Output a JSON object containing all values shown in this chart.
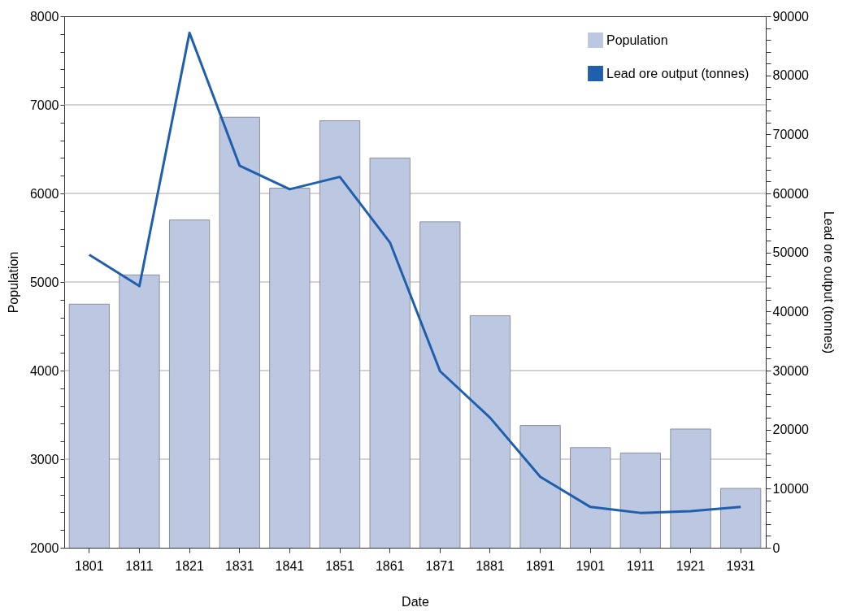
{
  "chart_data": {
    "type": "bar",
    "xlabel": "Date",
    "ylabel": "Population",
    "y2label": "Lead ore output (tonnes)",
    "categories": [
      "1801",
      "1811",
      "1821",
      "1831",
      "1841",
      "1851",
      "1861",
      "1871",
      "1881",
      "1891",
      "1901",
      "1911",
      "1921",
      "1931"
    ],
    "series": [
      {
        "name": "Population",
        "type": "bar",
        "color": "#bcc8e1",
        "values": [
          4750,
          5080,
          5700,
          6860,
          6060,
          6820,
          6400,
          5680,
          4620,
          3380,
          3130,
          3070,
          3340,
          2670
        ]
      },
      {
        "name": "Lead ore output (tonnes)",
        "type": "line",
        "axis": "y2",
        "color": "#1f5fae",
        "values": [
          49600,
          44300,
          87200,
          64700,
          60700,
          62800,
          51700,
          29900,
          22000,
          12000,
          6900,
          5900,
          6200,
          6900
        ]
      }
    ],
    "ylim": [
      2000,
      8000
    ],
    "yticks": [
      2000,
      {
        "value": 2200,
        "label": null
      },
      {
        "value": 2400,
        "label": null
      },
      {
        "value": 2600,
        "label": null
      },
      {
        "value": 2800,
        "label": null
      },
      3000,
      {
        "value": 3200,
        "label": null
      },
      {
        "value": 3400,
        "label": null
      },
      {
        "value": 3600,
        "label": null
      },
      {
        "value": 3800,
        "label": null
      },
      4000,
      {
        "value": 4200,
        "label": null
      },
      {
        "value": 4400,
        "label": null
      },
      {
        "value": 4600,
        "label": null
      },
      {
        "value": 4800,
        "label": null
      },
      5000,
      {
        "value": 5200,
        "label": null
      },
      {
        "value": 5400,
        "label": null
      },
      {
        "value": 5600,
        "label": null
      },
      {
        "value": 5800,
        "label": null
      },
      6000,
      {
        "value": 6200,
        "label": null
      },
      {
        "value": 6400,
        "label": null
      },
      {
        "value": 6600,
        "label": null
      },
      {
        "value": 6800,
        "label": null
      },
      7000,
      {
        "value": 7200,
        "label": null
      },
      {
        "value": 7400,
        "label": null
      },
      {
        "value": 7600,
        "label": null
      },
      {
        "value": 7800,
        "label": null
      },
      8000
    ],
    "y2lim": [
      0,
      90000
    ],
    "y2ticks": [
      0,
      {
        "value": 2000,
        "label": null
      },
      {
        "value": 4000,
        "label": null
      },
      {
        "value": 6000,
        "label": null
      },
      {
        "value": 8000,
        "label": null
      },
      10000,
      {
        "value": 12000,
        "label": null
      },
      {
        "value": 14000,
        "label": null
      },
      {
        "value": 16000,
        "label": null
      },
      {
        "value": 18000,
        "label": null
      },
      20000,
      {
        "value": 22000,
        "label": null
      },
      {
        "value": 24000,
        "label": null
      },
      {
        "value": 26000,
        "label": null
      },
      {
        "value": 28000,
        "label": null
      },
      30000,
      {
        "value": 32000,
        "label": null
      },
      {
        "value": 34000,
        "label": null
      },
      {
        "value": 36000,
        "label": null
      },
      {
        "value": 38000,
        "label": null
      },
      40000,
      {
        "value": 42000,
        "label": null
      },
      {
        "value": 44000,
        "label": null
      },
      {
        "value": 46000,
        "label": null
      },
      {
        "value": 48000,
        "label": null
      },
      50000,
      {
        "value": 52000,
        "label": null
      },
      {
        "value": 54000,
        "label": null
      },
      {
        "value": 56000,
        "label": null
      },
      {
        "value": 58000,
        "label": null
      },
      60000,
      {
        "value": 62000,
        "label": null
      },
      {
        "value": 64000,
        "label": null
      },
      {
        "value": 66000,
        "label": null
      },
      {
        "value": 68000,
        "label": null
      },
      70000,
      {
        "value": 72000,
        "label": null
      },
      {
        "value": 74000,
        "label": null
      },
      {
        "value": 76000,
        "label": null
      },
      {
        "value": 78000,
        "label": null
      },
      80000,
      {
        "value": 82000,
        "label": null
      },
      {
        "value": 84000,
        "label": null
      },
      {
        "value": 86000,
        "label": null
      },
      {
        "value": 88000,
        "label": null
      },
      90000
    ],
    "grid": "y",
    "legend": "top right"
  }
}
